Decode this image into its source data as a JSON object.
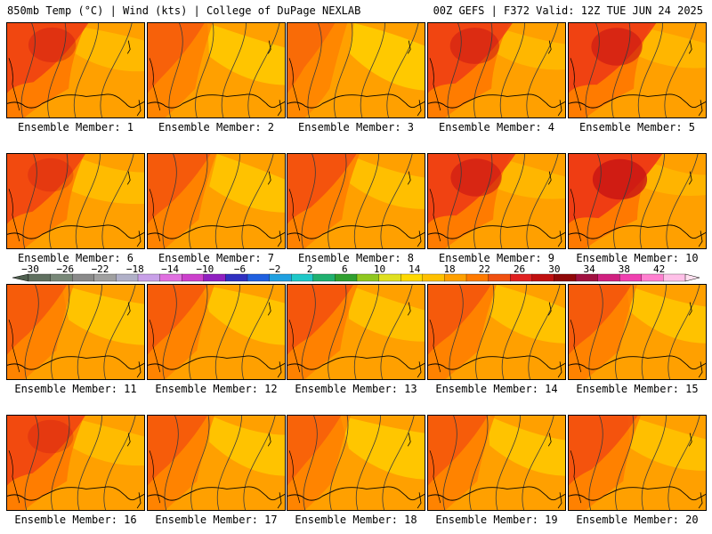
{
  "header": {
    "left": "850mb Temp (°C) | Wind (kts) | College of DuPage NEXLAB",
    "right": "00Z GEFS | F372 Valid: 12Z TUE JUN 24 2025"
  },
  "member_prefix": "Ensemble Member: ",
  "members": [
    {
      "label": "Ensemble Member: 1",
      "warmth": 0.75
    },
    {
      "label": "Ensemble Member: 2",
      "warmth": 0.35
    },
    {
      "label": "Ensemble Member: 3",
      "warmth": 0.2
    },
    {
      "label": "Ensemble Member: 4",
      "warmth": 0.8
    },
    {
      "label": "Ensemble Member: 5",
      "warmth": 0.85
    },
    {
      "label": "Ensemble Member: 6",
      "warmth": 0.7
    },
    {
      "label": "Ensemble Member: 7",
      "warmth": 0.45
    },
    {
      "label": "Ensemble Member: 8",
      "warmth": 0.55
    },
    {
      "label": "Ensemble Member: 9",
      "warmth": 0.85
    },
    {
      "label": "Ensemble Member: 10",
      "warmth": 0.95
    },
    {
      "label": "Ensemble Member: 11",
      "warmth": 0.4
    },
    {
      "label": "Ensemble Member: 12",
      "warmth": 0.4
    },
    {
      "label": "Ensemble Member: 13",
      "warmth": 0.5
    },
    {
      "label": "Ensemble Member: 14",
      "warmth": 0.45
    },
    {
      "label": "Ensemble Member: 15",
      "warmth": 0.45
    },
    {
      "label": "Ensemble Member: 16",
      "warmth": 0.7
    },
    {
      "label": "Ensemble Member: 17",
      "warmth": 0.4
    },
    {
      "label": "Ensemble Member: 18",
      "warmth": 0.3
    },
    {
      "label": "Ensemble Member: 19",
      "warmth": 0.4
    },
    {
      "label": "Ensemble Member: 20",
      "warmth": 0.55
    }
  ],
  "colorbar": {
    "labels": [
      "−30",
      "−26",
      "−22",
      "−18",
      "−14",
      "−10",
      "−6",
      "−2",
      "2",
      "6",
      "10",
      "14",
      "18",
      "22",
      "26",
      "30",
      "34",
      "38",
      "42"
    ],
    "colors": [
      "#607060",
      "#788878",
      "#8a8a8a",
      "#a0a0a0",
      "#b0b0c8",
      "#c8a0e8",
      "#e070e0",
      "#cc40cc",
      "#9020c0",
      "#3030c0",
      "#2060e0",
      "#20a0e0",
      "#20c8c8",
      "#20b070",
      "#30a030",
      "#90c820",
      "#e0e020",
      "#ffd800",
      "#ffc000",
      "#ffa000",
      "#ff7a00",
      "#f05010",
      "#e02020",
      "#c01010",
      "#900808",
      "#a01040",
      "#d02080",
      "#f040b0",
      "#ff80d0",
      "#ffc0e8"
    ]
  },
  "palette": {
    "yellow": "#ffd400",
    "orange": "#ffa000",
    "dark_orange": "#ff7800",
    "red": "#ee3a14",
    "dark_red": "#c81414",
    "contour": "#3a3a3a",
    "coast": "#000000"
  }
}
